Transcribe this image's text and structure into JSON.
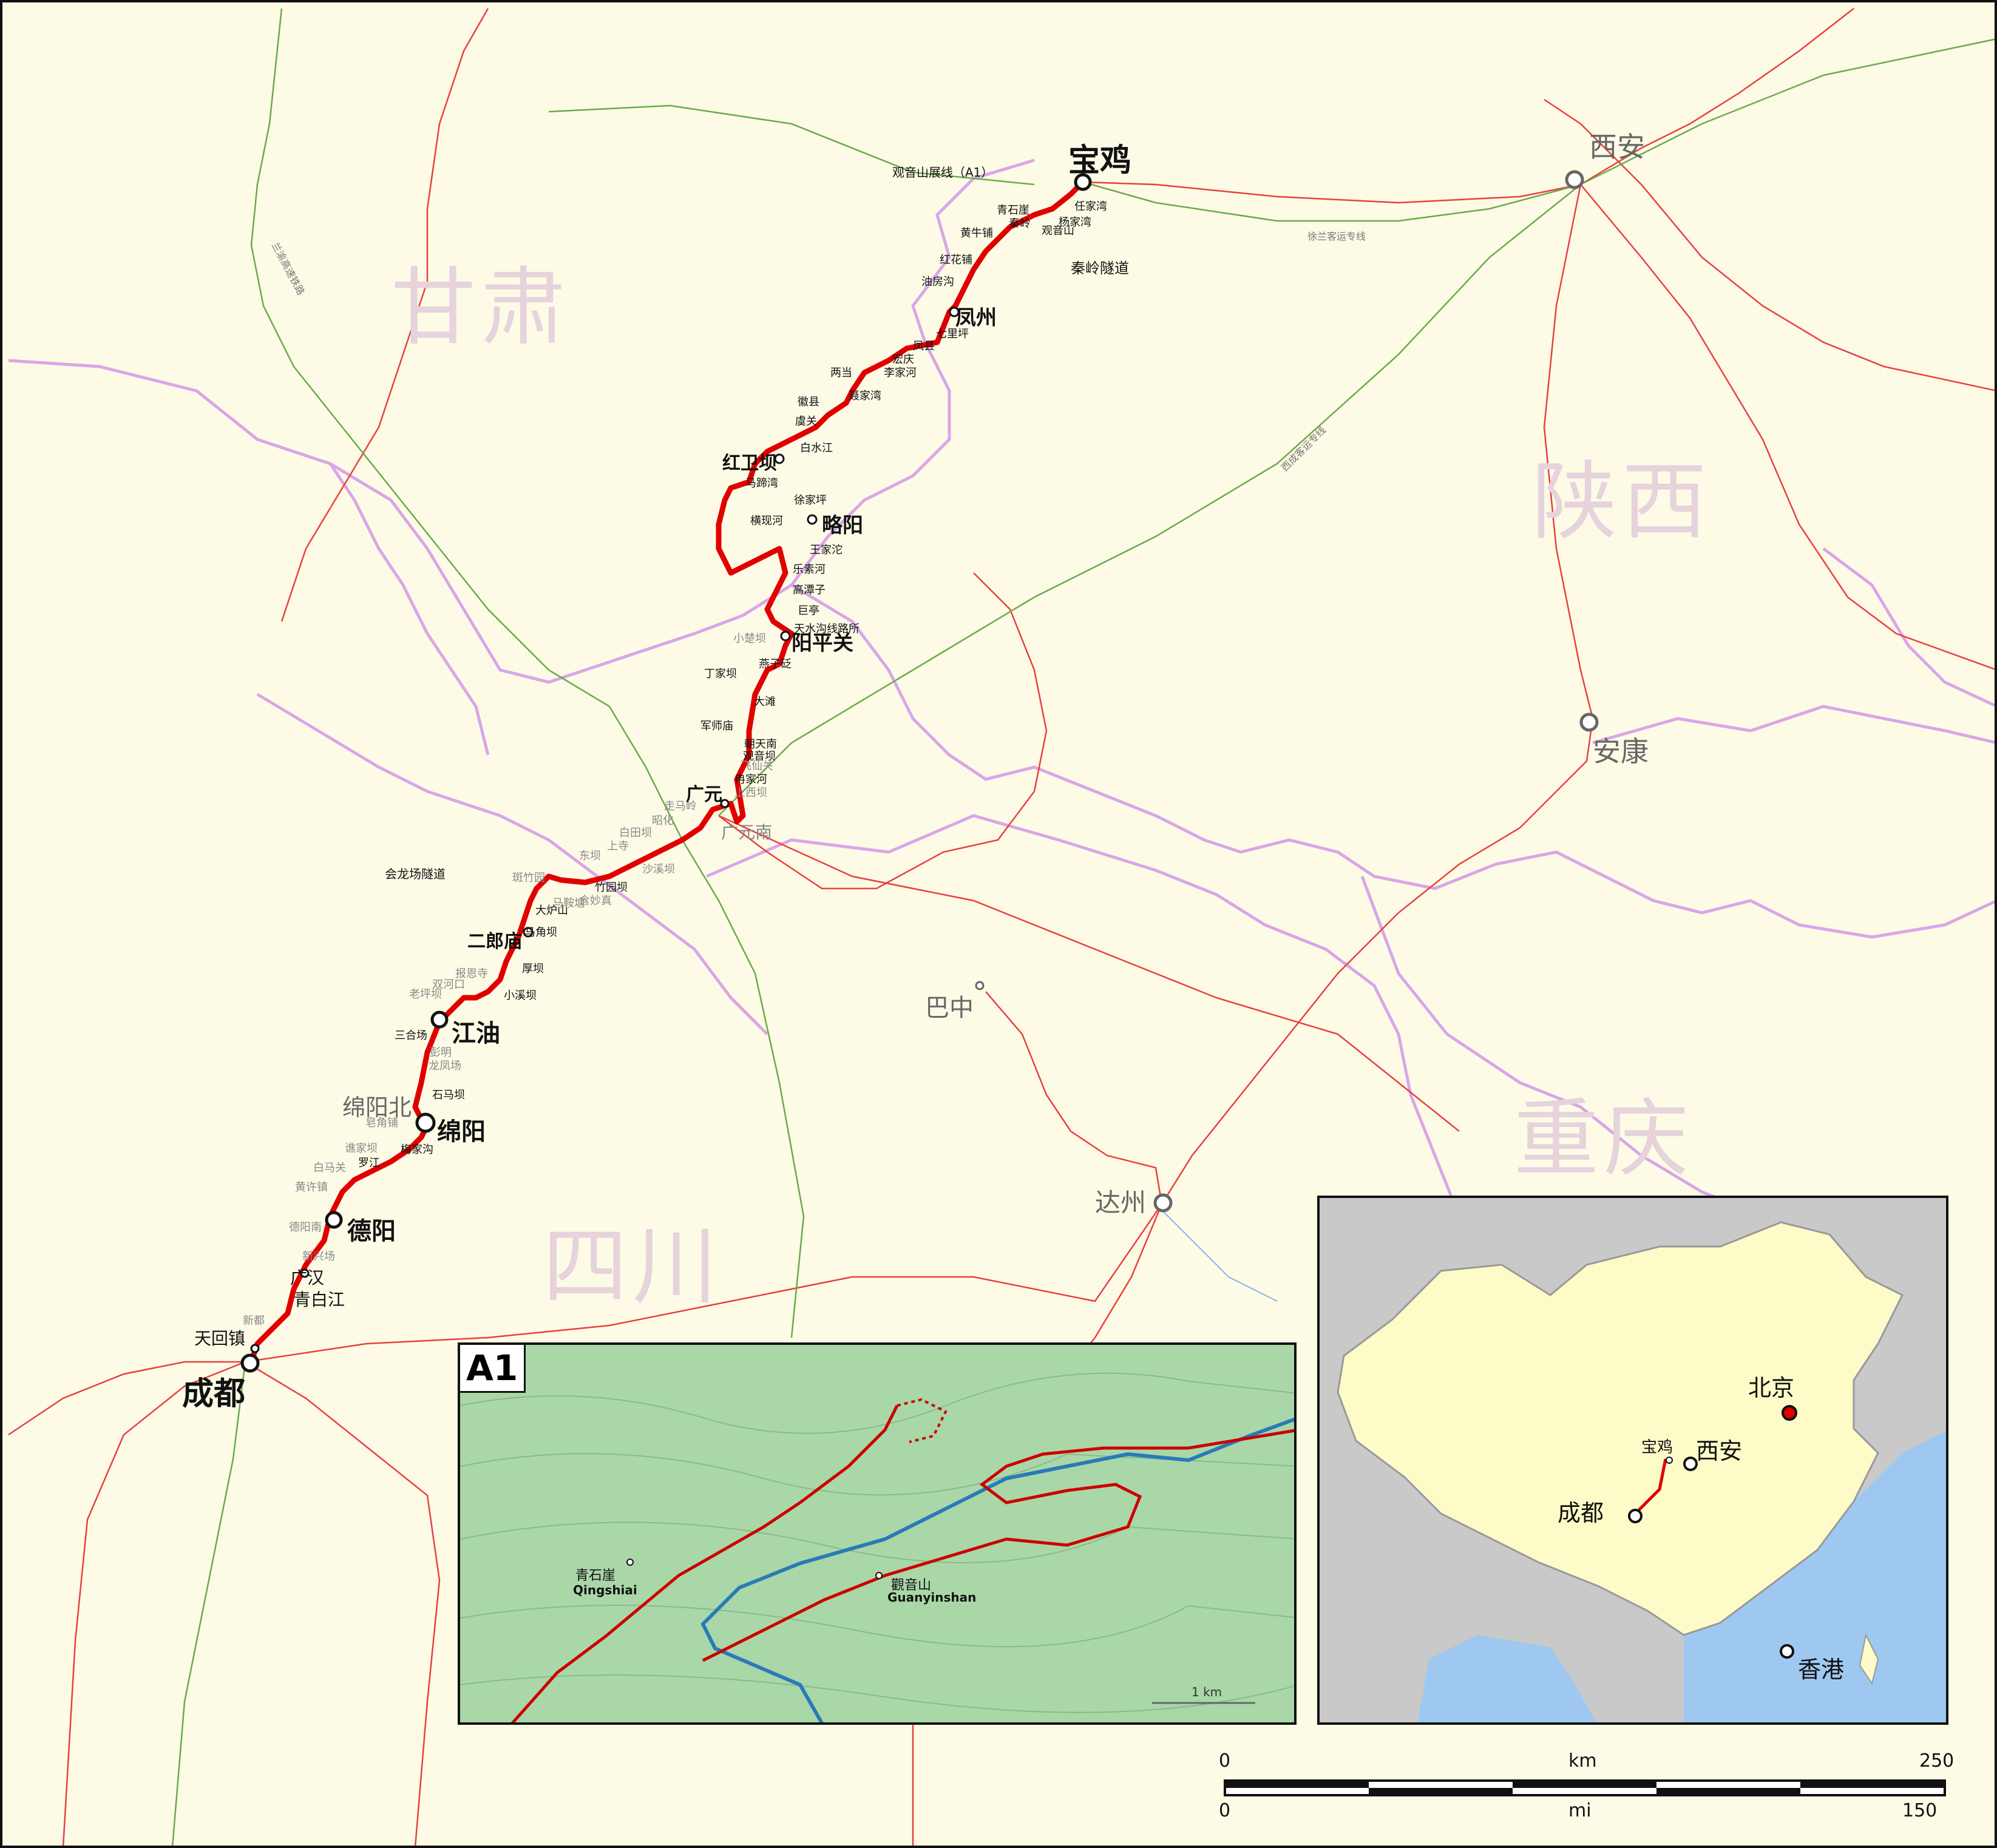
{
  "provinces": {
    "gansu": "甘肃",
    "shaanxi": "陕西",
    "sichuan": "四川",
    "chongqing": "重庆"
  },
  "major_cities": {
    "baoji": "宝鸡",
    "xian": "西安",
    "ankang": "安康",
    "bazhong": "巴中",
    "dazhou": "达州",
    "chengdu": "成都",
    "mianyang_north": "绵阳北"
  },
  "stations_big": {
    "fengzhou": "凤州",
    "hongweiba": "红卫坝",
    "lueyang": "略阳",
    "yangpingguan": "阳平关",
    "guangyuan": "广元",
    "guangyuan_nan": "广元南",
    "erlangmiao": "二郎庙",
    "jiangyou": "江油",
    "mianyang": "绵阳",
    "deyang": "德阳",
    "guanghan": "广汉",
    "qingbaijiang": "青白江",
    "tianhuizhen": "天回镇"
  },
  "stations_small": [
    "任家湾",
    "杨家湾",
    "观音山",
    "青石崖",
    "秦岭",
    "黄牛铺",
    "红花铺",
    "油房沟",
    "七里坪",
    "凤县",
    "宏庆",
    "李家河",
    "两当",
    "聂家湾",
    "徽县",
    "虞关",
    "白水江",
    "马蹄湾",
    "徐家坪",
    "横现河",
    "王家沱",
    "乐素河",
    "高潭子",
    "巨亭",
    "天水沟线路所",
    "燕子砭",
    "丁家坝",
    "大滩",
    "军师庙",
    "朝天南",
    "观音坝",
    "冉家河",
    "竹园坝",
    "大炉山",
    "马角坝",
    "厚坝",
    "小溪坝",
    "三合场",
    "石马坝",
    "梅家沟",
    "罗江"
  ],
  "stations_grey": [
    "小楚坝",
    "飞仙关",
    "上西坝",
    "走马岭",
    "昭化",
    "白田坝",
    "上寺",
    "东坝",
    "沙溪坝",
    "斑竹园",
    "马鞍塘",
    "含妙真",
    "报恩寺",
    "双河口",
    "老坪坝",
    "彭明",
    "龙凤场",
    "皂角铺",
    "谯家坝",
    "白马关",
    "黄许镇",
    "德阳南",
    "新兴场",
    "新都"
  ],
  "line_labels": {
    "xulan": "徐兰客运专线",
    "xicheng": "西成客运专线",
    "lanyu": "兰渝高速铁路"
  },
  "notes": {
    "guanyinshan_loop": "观音山展线（A1）",
    "qinling_tunnel": "秦岭隧道",
    "huilongchang_tunnel": "会龙场隧道"
  },
  "inset_a1": {
    "tag": "A1",
    "qingshiyai_cn": "青石崖",
    "qingshiyai_en": "Qingshiai",
    "guanyinshan_cn": "觀音山",
    "guanyinshan_en": "Guanyinshan",
    "scale": "1 km"
  },
  "inset_china": {
    "beijing": "北京",
    "baoji": "宝鸡",
    "xian": "西安",
    "chengdu": "成都",
    "hongkong": "香港"
  },
  "scale_bar": {
    "km_label": "km",
    "mi_label": "mi",
    "km_min": "0",
    "km_max": "250",
    "mi_min": "0",
    "mi_max": "150"
  },
  "colors": {
    "railway_main": "#e00000",
    "railway_other": "#e84040",
    "boundary": "#d9a6e8",
    "hsr_line": "#6aaa4a",
    "water": "#8ab4e8"
  }
}
